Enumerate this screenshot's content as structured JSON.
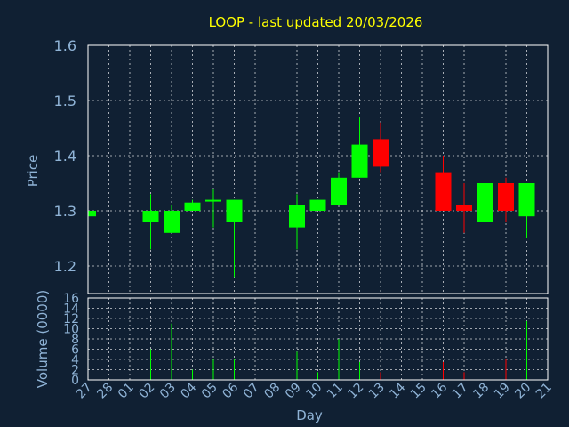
{
  "chart_data": {
    "type": "candlestick",
    "title": "LOOP - last updated 20/03/2026",
    "xlabel": "Day",
    "days": [
      "27",
      "28",
      "01",
      "02",
      "03",
      "04",
      "05",
      "06",
      "07",
      "08",
      "09",
      "10",
      "11",
      "12",
      "13",
      "14",
      "15",
      "16",
      "17",
      "18",
      "19",
      "20",
      "21"
    ],
    "price_panel": {
      "ylabel": "Price",
      "ylim": [
        1.15,
        1.6
      ],
      "yticks": [
        "1.2",
        "1.3",
        "1.4",
        "1.5",
        "1.6"
      ],
      "ytick_values": [
        1.2,
        1.3,
        1.4,
        1.5,
        1.6
      ],
      "candles": [
        {
          "day": "27",
          "open": 1.29,
          "high": 1.3,
          "low": 1.29,
          "close": 1.3
        },
        {
          "day": "02",
          "open": 1.28,
          "high": 1.33,
          "low": 1.23,
          "close": 1.3
        },
        {
          "day": "03",
          "open": 1.26,
          "high": 1.31,
          "low": 1.26,
          "close": 1.3
        },
        {
          "day": "04",
          "open": 1.3,
          "high": 1.32,
          "low": 1.3,
          "close": 1.315
        },
        {
          "day": "05",
          "open": 1.318,
          "high": 1.34,
          "low": 1.27,
          "close": 1.32
        },
        {
          "day": "06",
          "open": 1.28,
          "high": 1.32,
          "low": 1.18,
          "close": 1.32
        },
        {
          "day": "09",
          "open": 1.27,
          "high": 1.33,
          "low": 1.23,
          "close": 1.31
        },
        {
          "day": "10",
          "open": 1.3,
          "high": 1.32,
          "low": 1.3,
          "close": 1.32
        },
        {
          "day": "11",
          "open": 1.31,
          "high": 1.37,
          "low": 1.31,
          "close": 1.36
        },
        {
          "day": "12",
          "open": 1.36,
          "high": 1.47,
          "low": 1.36,
          "close": 1.42
        },
        {
          "day": "13",
          "open": 1.43,
          "high": 1.46,
          "low": 1.37,
          "close": 1.38
        },
        {
          "day": "16",
          "open": 1.37,
          "high": 1.4,
          "low": 1.3,
          "close": 1.3
        },
        {
          "day": "17",
          "open": 1.31,
          "high": 1.35,
          "low": 1.26,
          "close": 1.3
        },
        {
          "day": "18",
          "open": 1.28,
          "high": 1.4,
          "low": 1.27,
          "close": 1.35
        },
        {
          "day": "19",
          "open": 1.35,
          "high": 1.36,
          "low": 1.28,
          "close": 1.3
        },
        {
          "day": "20",
          "open": 1.29,
          "high": 1.35,
          "low": 1.25,
          "close": 1.35
        }
      ]
    },
    "volume_panel": {
      "ylabel": "Volume (0000)",
      "ylim": [
        0,
        16
      ],
      "yticks": [
        "0",
        "2",
        "4",
        "6",
        "8",
        "10",
        "12",
        "14",
        "16"
      ],
      "ytick_values": [
        0,
        2,
        4,
        6,
        8,
        10,
        12,
        14,
        16
      ],
      "bars": [
        {
          "day": "02",
          "value": 6,
          "color": "green"
        },
        {
          "day": "03",
          "value": 11,
          "color": "green"
        },
        {
          "day": "04",
          "value": 2,
          "color": "green"
        },
        {
          "day": "05",
          "value": 4,
          "color": "green"
        },
        {
          "day": "06",
          "value": 4,
          "color": "green"
        },
        {
          "day": "09",
          "value": 5.5,
          "color": "green"
        },
        {
          "day": "10",
          "value": 1.5,
          "color": "green"
        },
        {
          "day": "11",
          "value": 8,
          "color": "green"
        },
        {
          "day": "12",
          "value": 3.5,
          "color": "green"
        },
        {
          "day": "13",
          "value": 1.5,
          "color": "red"
        },
        {
          "day": "16",
          "value": 3.5,
          "color": "red"
        },
        {
          "day": "17",
          "value": 1.5,
          "color": "red"
        },
        {
          "day": "18",
          "value": 15.5,
          "color": "green"
        },
        {
          "day": "19",
          "value": 4,
          "color": "red"
        },
        {
          "day": "20",
          "value": 11.5,
          "color": "green"
        }
      ]
    },
    "colors": {
      "up": "#00ff00",
      "down": "#ff0000",
      "background": "#102033",
      "title": "#ffff00",
      "axis_text": "#8fb3d6",
      "grid": "#ffffff"
    },
    "grid": true
  }
}
